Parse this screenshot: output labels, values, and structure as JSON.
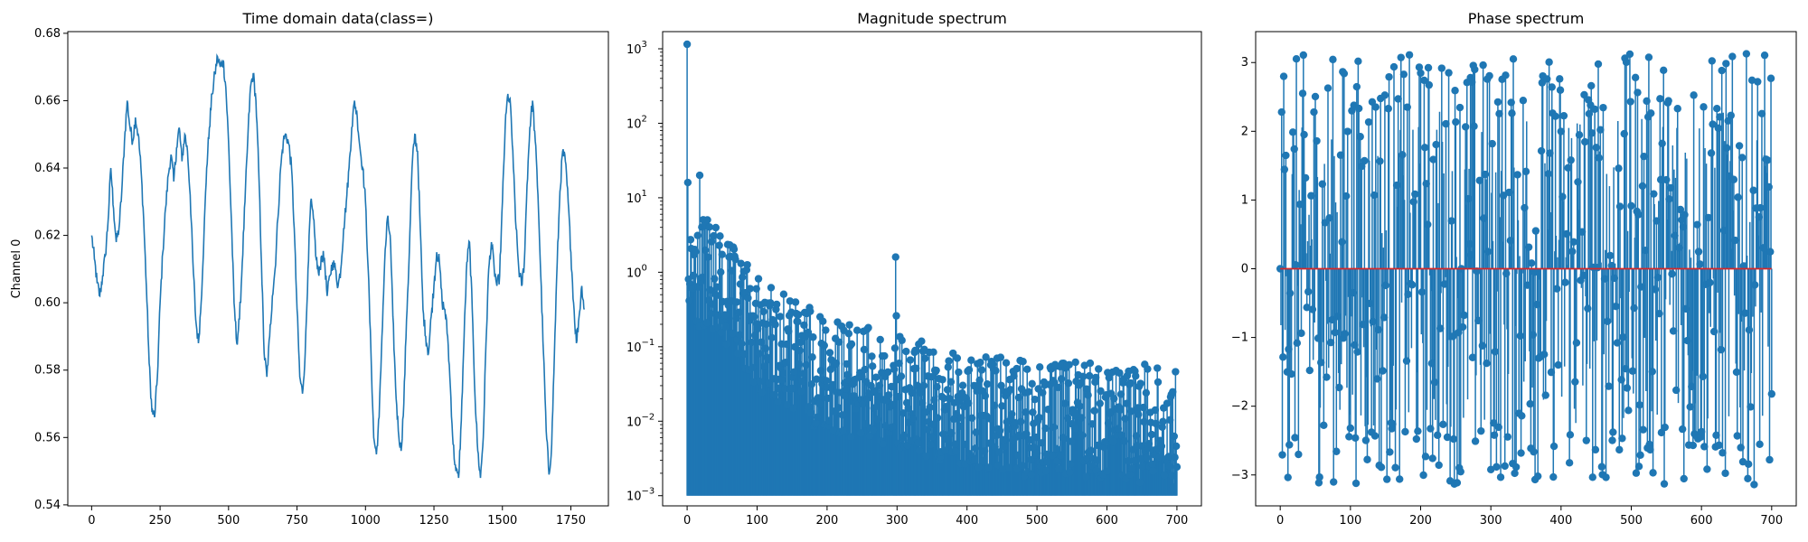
{
  "chart_data": [
    {
      "type": "line",
      "title": "Time domain data(class=)",
      "xlabel": "",
      "ylabel": "Channel 0",
      "xlim": [
        -87,
        1887
      ],
      "ylim": [
        0.5397,
        0.6805
      ],
      "xticks": [
        0,
        250,
        500,
        750,
        1000,
        1250,
        1500,
        1750
      ],
      "yticks": [
        0.54,
        0.56,
        0.58,
        0.6,
        0.62,
        0.64,
        0.66,
        0.68
      ],
      "ytick_labels": [
        "0.54",
        "0.56",
        "0.58",
        "0.60",
        "0.62",
        "0.64",
        "0.66",
        "0.68"
      ],
      "color": "#1f77b4",
      "series": [
        {
          "x": [
            0,
            10,
            20,
            30,
            40,
            50,
            60,
            70,
            80,
            90,
            100,
            110,
            120,
            130,
            140,
            150,
            160,
            170,
            180,
            190,
            200,
            210,
            220,
            230,
            240,
            250,
            260,
            270,
            280,
            290,
            300,
            310,
            320,
            330,
            340,
            350,
            360,
            370,
            380,
            390,
            400,
            410,
            420,
            430,
            440,
            450,
            460,
            470,
            480,
            490,
            500,
            510,
            520,
            530,
            540,
            550,
            560,
            570,
            580,
            590,
            600,
            610,
            620,
            630,
            640,
            650,
            660,
            670,
            680,
            690,
            700,
            710,
            720,
            730,
            740,
            750,
            760,
            770,
            780,
            790,
            800,
            810,
            820,
            830,
            840,
            850,
            860,
            870,
            880,
            890,
            900,
            910,
            920,
            930,
            940,
            950,
            960,
            970,
            980,
            990,
            1000,
            1010,
            1020,
            1030,
            1040,
            1050,
            1060,
            1070,
            1080,
            1090,
            1100,
            1110,
            1120,
            1130,
            1140,
            1150,
            1160,
            1170,
            1180,
            1190,
            1200,
            1210,
            1220,
            1230,
            1240,
            1250,
            1260,
            1270,
            1280,
            1290,
            1300,
            1310,
            1320,
            1330,
            1340,
            1350,
            1360,
            1370,
            1380,
            1390,
            1400,
            1410,
            1420,
            1430,
            1440,
            1450,
            1460,
            1470,
            1480,
            1490,
            1500,
            1510,
            1520,
            1530,
            1540,
            1550,
            1560,
            1570,
            1580,
            1590,
            1600,
            1610,
            1620,
            1630,
            1640,
            1650,
            1660,
            1670,
            1680,
            1690,
            1700,
            1710,
            1720,
            1730,
            1740,
            1750,
            1760,
            1770,
            1780,
            1790,
            1799
          ],
          "y": [
            0.62,
            0.613,
            0.606,
            0.602,
            0.608,
            0.614,
            0.624,
            0.64,
            0.628,
            0.618,
            0.622,
            0.633,
            0.648,
            0.66,
            0.652,
            0.648,
            0.655,
            0.65,
            0.64,
            0.625,
            0.605,
            0.582,
            0.568,
            0.566,
            0.578,
            0.6,
            0.615,
            0.628,
            0.638,
            0.644,
            0.636,
            0.646,
            0.652,
            0.642,
            0.65,
            0.645,
            0.632,
            0.612,
            0.595,
            0.588,
            0.6,
            0.62,
            0.64,
            0.652,
            0.662,
            0.668,
            0.673,
            0.67,
            0.672,
            0.664,
            0.648,
            0.625,
            0.6,
            0.588,
            0.595,
            0.612,
            0.63,
            0.648,
            0.664,
            0.668,
            0.66,
            0.64,
            0.612,
            0.585,
            0.578,
            0.59,
            0.602,
            0.61,
            0.625,
            0.64,
            0.648,
            0.65,
            0.647,
            0.64,
            0.622,
            0.598,
            0.578,
            0.573,
            0.585,
            0.61,
            0.63,
            0.625,
            0.613,
            0.608,
            0.614,
            0.613,
            0.602,
            0.608,
            0.612,
            0.61,
            0.605,
            0.61,
            0.622,
            0.63,
            0.64,
            0.652,
            0.66,
            0.655,
            0.646,
            0.64,
            0.63,
            0.61,
            0.585,
            0.56,
            0.555,
            0.566,
            0.59,
            0.612,
            0.625,
            0.62,
            0.596,
            0.575,
            0.562,
            0.556,
            0.57,
            0.595,
            0.615,
            0.64,
            0.65,
            0.645,
            0.622,
            0.598,
            0.59,
            0.585,
            0.596,
            0.605,
            0.615,
            0.612,
            0.6,
            0.598,
            0.59,
            0.575,
            0.558,
            0.55,
            0.548,
            0.565,
            0.59,
            0.612,
            0.618,
            0.598,
            0.572,
            0.556,
            0.548,
            0.56,
            0.588,
            0.61,
            0.618,
            0.61,
            0.605,
            0.608,
            0.63,
            0.652,
            0.662,
            0.658,
            0.64,
            0.622,
            0.61,
            0.605,
            0.612,
            0.635,
            0.652,
            0.66,
            0.648,
            0.632,
            0.608,
            0.585,
            0.562,
            0.549,
            0.558,
            0.585,
            0.612,
            0.633,
            0.645,
            0.642,
            0.63,
            0.615,
            0.6,
            0.588,
            0.596,
            0.605,
            0.598
          ]
        }
      ]
    },
    {
      "type": "stem",
      "title": "Magnitude spectrum",
      "xlabel": "",
      "ylabel": "",
      "yscale": "log",
      "xlim": [
        -35,
        735
      ],
      "ylim": [
        0.00073,
        1700
      ],
      "xticks": [
        0,
        100,
        200,
        300,
        400,
        500,
        600,
        700
      ],
      "yticks": [
        0.001,
        0.01,
        0.1,
        1,
        10,
        100,
        1000
      ],
      "ytick_labels": [
        "10^-3",
        "10^-2",
        "10^-1",
        "10^0",
        "10^1",
        "10^2",
        "10^3"
      ],
      "color": "#1f77b4",
      "n_bins": 701,
      "notable_points": [
        {
          "x": 0,
          "y": 1150
        },
        {
          "x": 1,
          "y": 16
        },
        {
          "x": 18,
          "y": 20
        },
        {
          "x": 298,
          "y": 1.6
        },
        {
          "x": 299,
          "y": 0.26
        }
      ],
      "envelope": [
        {
          "x": 0,
          "y": 5.0
        },
        {
          "x": 20,
          "y": 6.0
        },
        {
          "x": 40,
          "y": 4.5
        },
        {
          "x": 60,
          "y": 2.5
        },
        {
          "x": 100,
          "y": 1.0
        },
        {
          "x": 150,
          "y": 0.45
        },
        {
          "x": 200,
          "y": 0.28
        },
        {
          "x": 300,
          "y": 0.14
        },
        {
          "x": 400,
          "y": 0.09
        },
        {
          "x": 500,
          "y": 0.06
        },
        {
          "x": 600,
          "y": 0.07
        },
        {
          "x": 700,
          "y": 0.05
        }
      ],
      "floor": 0.001
    },
    {
      "type": "stem",
      "title": "Phase spectrum",
      "xlabel": "",
      "ylabel": "",
      "xlim": [
        -35,
        735
      ],
      "ylim": [
        -3.45,
        3.45
      ],
      "xticks": [
        0,
        100,
        200,
        300,
        400,
        500,
        600,
        700
      ],
      "yticks": [
        -3,
        -2,
        -1,
        0,
        1,
        2,
        3
      ],
      "ytick_labels": [
        "−3",
        "−2",
        "−1",
        "0",
        "1",
        "2",
        "3"
      ],
      "color": "#1f77b4",
      "baseline_color": "#d62728",
      "n_bins": 701,
      "range": [
        -3.14159,
        3.14159
      ]
    }
  ]
}
